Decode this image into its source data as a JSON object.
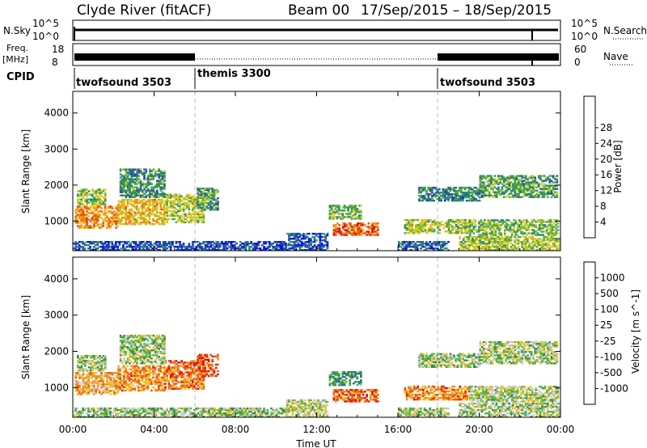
{
  "header": {
    "station": "Clyde River (fitACF)",
    "beam": "Beam 00",
    "dates": "17/Sep/2015 – 18/Sep/2015"
  },
  "nsky_panel": {
    "label": "N.Sky",
    "right_label": "N.Search",
    "left_ticks": [
      "10^5",
      "10^0"
    ],
    "right_ticks": [
      "10^5",
      "10^0"
    ]
  },
  "freq_panel": {
    "label_line1": "Freq.",
    "label_line2": "[MHz]",
    "right_label": "Nave",
    "left_ticks": [
      "18",
      "8"
    ],
    "right_ticks": [
      "60",
      "0"
    ]
  },
  "cpid": {
    "label": "CPID",
    "segments": [
      {
        "start_hour": 0,
        "end_hour": 6,
        "name": "twofsound 3503"
      },
      {
        "start_hour": 6,
        "end_hour": 18,
        "name": "themis 3300"
      },
      {
        "start_hour": 18,
        "end_hour": 24,
        "name": "twofsound 3503"
      }
    ]
  },
  "x_axis": {
    "label": "Time UT",
    "range_hours": [
      0,
      24
    ],
    "tick_hours": [
      0,
      4,
      8,
      12,
      16,
      20,
      24
    ],
    "tick_labels": [
      "00:00",
      "04:00",
      "08:00",
      "12:00",
      "16:00",
      "20:00",
      "00:00"
    ]
  },
  "chart_data": [
    {
      "type": "heatmap",
      "panel": "power",
      "ylabel": "Slant Range [km]",
      "ylim": [
        180,
        4600
      ],
      "yticks": [
        1000,
        2000,
        3000,
        4000
      ],
      "colorbar": {
        "label": "Power [dB]",
        "ticks": [
          "4",
          "8",
          "12",
          "16",
          "20",
          "24",
          "28"
        ],
        "colors": [
          "#1010f0",
          "#2a4fb0",
          "#2a8a6e",
          "#55a840",
          "#b7d12a",
          "#f0c020",
          "#f08a10",
          "#e84810",
          "#e01010"
        ]
      },
      "regions": [
        {
          "t": [
            0.1,
            2.2
          ],
          "r": [
            800,
            1400
          ],
          "level": 0.72
        },
        {
          "t": [
            2.2,
            4.5
          ],
          "r": [
            900,
            1600
          ],
          "level": 0.62
        },
        {
          "t": [
            4.5,
            6.4
          ],
          "r": [
            950,
            1750
          ],
          "level": 0.5
        },
        {
          "t": [
            0.2,
            1.6
          ],
          "r": [
            1450,
            1900
          ],
          "level": 0.45
        },
        {
          "t": [
            2.3,
            4.5
          ],
          "r": [
            1650,
            2450
          ],
          "level": 0.3
        },
        {
          "t": [
            6.1,
            7.1
          ],
          "r": [
            1300,
            1900
          ],
          "level": 0.35
        },
        {
          "t": [
            12.8,
            15.0
          ],
          "r": [
            600,
            950
          ],
          "level": 0.82
        },
        {
          "t": [
            12.6,
            14.2
          ],
          "r": [
            1050,
            1450
          ],
          "level": 0.4
        },
        {
          "t": [
            16.3,
            19.5
          ],
          "r": [
            650,
            1050
          ],
          "level": 0.48
        },
        {
          "t": [
            19.5,
            23.9
          ],
          "r": [
            600,
            1050
          ],
          "level": 0.42
        },
        {
          "t": [
            17.0,
            20.0
          ],
          "r": [
            1550,
            1950
          ],
          "level": 0.28
        },
        {
          "t": [
            20.0,
            23.8
          ],
          "r": [
            1650,
            2250
          ],
          "level": 0.35
        },
        {
          "t": [
            0.0,
            10.5
          ],
          "r": [
            180,
            420
          ],
          "level": 0.15
        },
        {
          "t": [
            10.5,
            12.5
          ],
          "r": [
            180,
            650
          ],
          "level": 0.18
        },
        {
          "t": [
            19.0,
            24.0
          ],
          "r": [
            180,
            550
          ],
          "level": 0.5
        },
        {
          "t": [
            16.0,
            18.5
          ],
          "r": [
            180,
            450
          ],
          "level": 0.2
        }
      ]
    },
    {
      "type": "heatmap",
      "panel": "velocity",
      "ylabel": "Slant Range [km]",
      "ylim": [
        180,
        4600
      ],
      "yticks": [
        1000,
        2000,
        3000,
        4000
      ],
      "colorbar": {
        "label": "Velocity [m s^-1]",
        "ticks": [
          "1000",
          "500",
          "100",
          "25",
          "-25",
          "-100",
          "-500",
          "-1000"
        ],
        "colors": [
          "#1f3fc0",
          "#2a6aa0",
          "#3a8a50",
          "#5ab840",
          "#c8c8c8",
          "#f0c020",
          "#f09020",
          "#f05010",
          "#e01010"
        ]
      },
      "regions": [
        {
          "t": [
            0.1,
            2.2
          ],
          "r": [
            800,
            1400
          ],
          "level": 0.66
        },
        {
          "t": [
            2.2,
            4.5
          ],
          "r": [
            900,
            1600
          ],
          "level": 0.72
        },
        {
          "t": [
            4.5,
            6.4
          ],
          "r": [
            950,
            1750
          ],
          "level": 0.78
        },
        {
          "t": [
            0.2,
            1.6
          ],
          "r": [
            1450,
            1900
          ],
          "level": 0.45
        },
        {
          "t": [
            2.3,
            4.5
          ],
          "r": [
            1650,
            2450
          ],
          "level": 0.44
        },
        {
          "t": [
            6.1,
            7.1
          ],
          "r": [
            1300,
            1900
          ],
          "level": 0.8
        },
        {
          "t": [
            12.8,
            15.0
          ],
          "r": [
            600,
            950
          ],
          "level": 0.82
        },
        {
          "t": [
            12.6,
            14.2
          ],
          "r": [
            1050,
            1450
          ],
          "level": 0.3
        },
        {
          "t": [
            16.3,
            19.5
          ],
          "r": [
            650,
            1050
          ],
          "level": 0.74
        },
        {
          "t": [
            19.5,
            23.9
          ],
          "r": [
            600,
            1050
          ],
          "level": 0.46
        },
        {
          "t": [
            17.0,
            20.0
          ],
          "r": [
            1550,
            1950
          ],
          "level": 0.44
        },
        {
          "t": [
            20.0,
            23.8
          ],
          "r": [
            1650,
            2250
          ],
          "level": 0.45
        },
        {
          "t": [
            0.0,
            10.5
          ],
          "r": [
            180,
            420
          ],
          "level": 0.44
        },
        {
          "t": [
            10.5,
            12.5
          ],
          "r": [
            180,
            650
          ],
          "level": 0.5
        },
        {
          "t": [
            19.0,
            24.0
          ],
          "r": [
            180,
            550
          ],
          "level": 0.45
        },
        {
          "t": [
            16.0,
            18.5
          ],
          "r": [
            180,
            450
          ],
          "level": 0.44
        }
      ]
    }
  ]
}
